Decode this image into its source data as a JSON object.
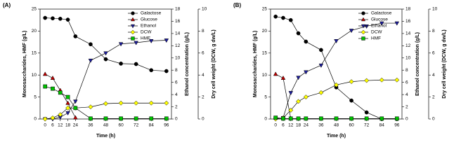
{
  "chart_data": [
    {
      "type": "line",
      "panel": "(A)",
      "xlabel": "Time (h)",
      "ylabel": "Monosaccharides, HMF (g/L)",
      "y2label": "Ethanol concentration (g/L)",
      "y3label": "Dry cell weight (DCW, g dw/L)",
      "x": [
        0,
        6,
        12,
        18,
        24,
        36,
        48,
        60,
        72,
        84,
        96
      ],
      "xlim": [
        -4,
        100
      ],
      "xticks": [
        0,
        6,
        12,
        18,
        24,
        36,
        48,
        60,
        72,
        84,
        96
      ],
      "ylim": [
        0,
        25
      ],
      "yticks": [
        0,
        5,
        10,
        15,
        20,
        25
      ],
      "y2lim": [
        0,
        18
      ],
      "y2ticks": [
        0,
        2,
        4,
        6,
        8,
        10,
        12,
        14,
        16,
        18
      ],
      "y3lim": [
        0,
        10
      ],
      "y3ticks": [
        0,
        2,
        4,
        6,
        8,
        10
      ],
      "legend": "upper right",
      "series": [
        {
          "name": "Galactose",
          "color": "#000000",
          "marker": "circle",
          "axis": "y",
          "values": [
            23,
            22.9,
            22.8,
            22.6,
            18.8,
            17,
            13.6,
            12.6,
            12.5,
            11.1,
            10.9
          ]
        },
        {
          "name": "Glucose",
          "color": "#c00000",
          "marker": "triangle",
          "axis": "y",
          "values": [
            10.2,
            9.3,
            6.5,
            3.6,
            0.3,
            null,
            null,
            null,
            null,
            null,
            null
          ]
        },
        {
          "name": "Ethanol",
          "color": "#1c1c9c",
          "marker": "triangle-down",
          "axis": "y2",
          "values": [
            0,
            0,
            0.3,
            1,
            2.9,
            9.6,
            10.8,
            12.3,
            12.5,
            12.8,
            12.9
          ]
        },
        {
          "name": "DCW",
          "color": "#ffff00",
          "marker": "diamond",
          "axis": "y3",
          "values": [
            0,
            0.1,
            0.4,
            1,
            1,
            1.1,
            1.4,
            1.45,
            1.45,
            1.45,
            1.45
          ]
        },
        {
          "name": "HMF",
          "color": "#00c000",
          "marker": "square",
          "axis": "y",
          "values": [
            7.4,
            6.9,
            6,
            5,
            2.5,
            0.1,
            0.1,
            0.1,
            0.1,
            0.1,
            0.1
          ]
        }
      ]
    },
    {
      "type": "line",
      "panel": "(B)",
      "xlabel": "Time (h)",
      "ylabel": "Monosaccharides, HMF (g/L)",
      "y2label": "Ethanol concentration (g/L)",
      "y3label": "Dry cell weight (DCW, g dw/L)",
      "x": [
        0,
        6,
        12,
        18,
        24,
        36,
        48,
        60,
        72,
        84,
        96
      ],
      "xlim": [
        -4,
        100
      ],
      "xticks": [
        0,
        6,
        12,
        18,
        24,
        36,
        48,
        60,
        72,
        84,
        96
      ],
      "ylim": [
        0,
        25
      ],
      "yticks": [
        0,
        5,
        10,
        15,
        20,
        25
      ],
      "y2lim": [
        0,
        18
      ],
      "y2ticks": [
        0,
        2,
        4,
        6,
        8,
        10,
        12,
        14,
        16,
        18
      ],
      "y3lim": [
        0,
        10
      ],
      "y3ticks": [
        0,
        2,
        4,
        6,
        8,
        10
      ],
      "legend": "upper right",
      "series": [
        {
          "name": "Galactose",
          "color": "#000000",
          "marker": "circle",
          "axis": "y",
          "values": [
            23.3,
            23,
            22.5,
            19.5,
            17.6,
            15.7,
            7.2,
            4.2,
            1.5,
            0,
            0
          ]
        },
        {
          "name": "Glucose",
          "color": "#c00000",
          "marker": "triangle",
          "axis": "y",
          "values": [
            10.2,
            9.3,
            0.1,
            null,
            null,
            null,
            null,
            null,
            null,
            null,
            null
          ]
        },
        {
          "name": "Ethanol",
          "color": "#1c1c9c",
          "marker": "triangle-down",
          "axis": "y2",
          "values": [
            0,
            0.2,
            4.3,
            6.8,
            7.7,
            8.8,
            12.8,
            14.5,
            15.2,
            15.7,
            15.7
          ]
        },
        {
          "name": "DCW",
          "color": "#ffff00",
          "marker": "diamond",
          "axis": "y3",
          "values": [
            0,
            0.1,
            0.8,
            1.6,
            2,
            2.4,
            3.1,
            3.4,
            3.5,
            3.55,
            3.55
          ]
        },
        {
          "name": "HMF",
          "color": "#00c000",
          "marker": "square",
          "axis": "y",
          "values": [
            0.3,
            0.1,
            0.1,
            0.1,
            0.1,
            0.1,
            0.1,
            0.1,
            0.1,
            0.1,
            0.1
          ]
        }
      ]
    }
  ]
}
